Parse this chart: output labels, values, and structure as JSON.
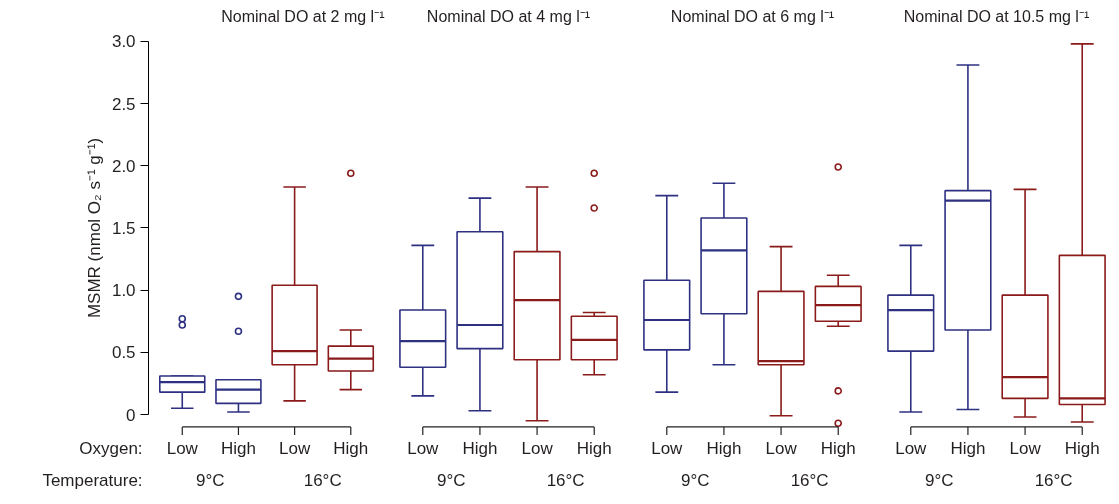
{
  "chart_data": [
    {
      "type": "box",
      "title": "Nominal DO at 2 mg l⁻¹",
      "ylabel": "MSMR (nmol O₂ s⁻¹ g⁻¹)",
      "categories": [
        "Low",
        "High",
        "Low",
        "High"
      ],
      "colors": [
        "#2e3182",
        "#2e3182",
        "#8b1a1a",
        "#8b1a1a"
      ],
      "ylim": [
        -0.1,
        3.0
      ],
      "yticks": [
        {
          "value": 0,
          "label": "0"
        },
        {
          "value": 0.5,
          "label": "0.5"
        },
        {
          "value": 1,
          "label": "1.0"
        },
        {
          "value": 1.5,
          "label": "1.5"
        },
        {
          "value": 2,
          "label": "2.0"
        },
        {
          "value": 2.5,
          "label": "2.5"
        },
        {
          "value": 3,
          "label": "3.0"
        }
      ],
      "annotations": [
        "Oxygen:",
        "Temperature:",
        "9°C",
        "16°C"
      ],
      "boxes": [
        {
          "low": 0.05,
          "q1": 0.18,
          "median": 0.26,
          "q3": 0.31,
          "high": 0.31,
          "outliers": [
            0.72,
            0.77
          ]
        },
        {
          "low": 0.02,
          "q1": 0.09,
          "median": 0.2,
          "q3": 0.28,
          "high": 0.28,
          "outliers": [
            0.67,
            0.95
          ]
        },
        {
          "low": 0.11,
          "q1": 0.4,
          "median": 0.51,
          "q3": 1.04,
          "high": 1.83
        },
        {
          "low": 0.2,
          "q1": 0.35,
          "median": 0.45,
          "q3": 0.55,
          "high": 0.68,
          "outliers": [
            1.94
          ]
        }
      ]
    },
    {
      "type": "box",
      "title": "Nominal DO at 4 mg l⁻¹",
      "categories": [
        "Low",
        "High",
        "Low",
        "High"
      ],
      "colors": [
        "#2e3182",
        "#2e3182",
        "#8b1a1a",
        "#8b1a1a"
      ],
      "ylim": [
        -0.1,
        3.0
      ],
      "tick_labels": "x",
      "annotations": [
        "9°C",
        "16°C"
      ],
      "boxes": [
        {
          "low": 0.15,
          "q1": 0.38,
          "median": 0.59,
          "q3": 0.84,
          "high": 1.36
        },
        {
          "low": 0.03,
          "q1": 0.53,
          "median": 0.72,
          "q3": 1.47,
          "high": 1.74
        },
        {
          "low": -0.05,
          "q1": 0.44,
          "median": 0.92,
          "q3": 1.31,
          "high": 1.83
        },
        {
          "low": 0.32,
          "q1": 0.44,
          "median": 0.6,
          "q3": 0.79,
          "high": 0.82,
          "outliers": [
            1.66,
            1.94
          ]
        }
      ]
    },
    {
      "type": "box",
      "title": "Nominal DO at 6 mg l⁻¹",
      "categories": [
        "Low",
        "High",
        "Low",
        "High"
      ],
      "colors": [
        "#2e3182",
        "#2e3182",
        "#8b1a1a",
        "#8b1a1a"
      ],
      "ylim": [
        -0.1,
        3.0
      ],
      "tick_labels": "x",
      "annotations": [
        "9°C",
        "16°C"
      ],
      "boxes": [
        {
          "low": 0.18,
          "q1": 0.52,
          "median": 0.76,
          "q3": 1.08,
          "high": 1.76
        },
        {
          "low": 0.4,
          "q1": 0.81,
          "median": 1.32,
          "q3": 1.58,
          "high": 1.86
        },
        {
          "low": -0.01,
          "q1": 0.4,
          "median": 0.43,
          "q3": 0.99,
          "high": 1.35
        },
        {
          "low": 0.71,
          "q1": 0.75,
          "median": 0.88,
          "q3": 1.03,
          "high": 1.12,
          "outliers": [
            -0.07,
            0.19,
            1.99
          ]
        }
      ]
    },
    {
      "type": "box",
      "title": "Nominal DO at 10.5 mg l⁻¹",
      "categories": [
        "Low",
        "High",
        "Low",
        "High"
      ],
      "colors": [
        "#2e3182",
        "#2e3182",
        "#8b1a1a",
        "#8b1a1a"
      ],
      "ylim": [
        -0.1,
        3.0
      ],
      "tick_labels": "x",
      "annotations": [
        "9°C",
        "16°C"
      ],
      "boxes": [
        {
          "low": 0.02,
          "q1": 0.51,
          "median": 0.84,
          "q3": 0.96,
          "high": 1.36
        },
        {
          "low": 0.04,
          "q1": 0.68,
          "median": 1.72,
          "q3": 1.8,
          "high": 2.81
        },
        {
          "low": -0.02,
          "q1": 0.13,
          "median": 0.3,
          "q3": 0.96,
          "high": 1.81
        },
        {
          "low": -0.06,
          "q1": 0.08,
          "median": 0.13,
          "q3": 1.28,
          "high": 2.98
        }
      ]
    }
  ]
}
